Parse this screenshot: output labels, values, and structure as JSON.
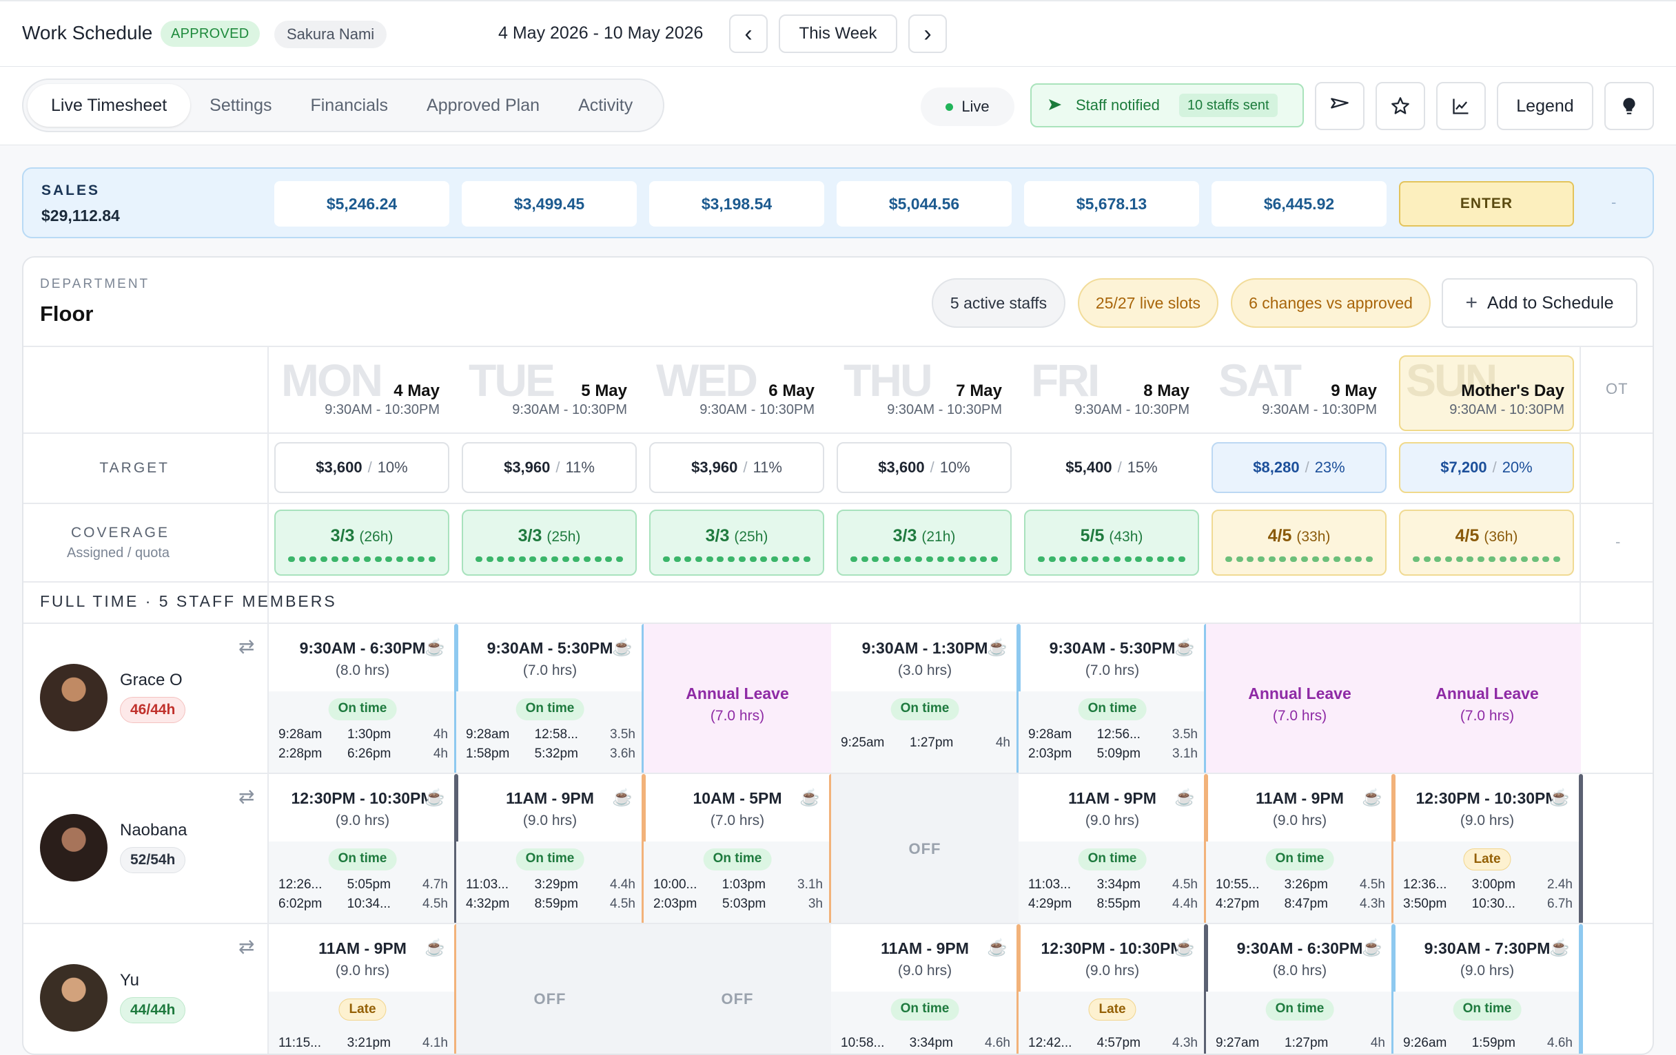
{
  "header": {
    "title": "Work Schedule",
    "status": "APPROVED",
    "user": "Sakura Nami",
    "date_range": "4 May 2026 - 10 May 2026",
    "prev_icon": "‹",
    "this_week": "This Week",
    "next_icon": "›"
  },
  "tabs": [
    "Live Timesheet",
    "Settings",
    "Financials",
    "Approved Plan",
    "Activity"
  ],
  "toolbar": {
    "live": "Live",
    "notified": "Staff notified",
    "sent": "10 staffs sent",
    "legend": "Legend",
    "send_icon": "send-icon",
    "star_icon": "star-icon",
    "chart_icon": "chart-icon",
    "bulb_icon": "bulb-icon"
  },
  "sales": {
    "label": "SALES",
    "total": "$29,112.84",
    "days": [
      "$5,246.24",
      "$3,499.45",
      "$3,198.54",
      "$5,044.56",
      "$5,678.13",
      "$6,445.92"
    ],
    "enter": "ENTER",
    "ot": "-"
  },
  "department": {
    "label": "DEPARTMENT",
    "name": "Floor",
    "active_staffs": "5 active staffs",
    "live_slots": "25/27 live slots",
    "changes": "6 changes vs approved",
    "add_button": "Add to Schedule"
  },
  "days": [
    {
      "word": "MON",
      "date": "4 May",
      "hours": "9:30AM - 10:30PM"
    },
    {
      "word": "TUE",
      "date": "5 May",
      "hours": "9:30AM - 10:30PM"
    },
    {
      "word": "WED",
      "date": "6 May",
      "hours": "9:30AM - 10:30PM"
    },
    {
      "word": "THU",
      "date": "7 May",
      "hours": "9:30AM - 10:30PM"
    },
    {
      "word": "FRI",
      "date": "8 May",
      "hours": "9:30AM - 10:30PM"
    },
    {
      "word": "SAT",
      "date": "9 May",
      "hours": "9:30AM - 10:30PM"
    },
    {
      "word": "SUN",
      "date": "Mother's Day",
      "hours": "9:30AM - 10:30PM"
    }
  ],
  "ot_label": "OT",
  "target": {
    "label": "TARGET",
    "cells": [
      {
        "amount": "$3,600",
        "pct": "10%"
      },
      {
        "amount": "$3,960",
        "pct": "11%"
      },
      {
        "amount": "$3,960",
        "pct": "11%"
      },
      {
        "amount": "$3,600",
        "pct": "10%"
      },
      {
        "amount": "$5,400",
        "pct": "15%"
      },
      {
        "amount": "$8,280",
        "pct": "23%"
      },
      {
        "amount": "$7,200",
        "pct": "20%"
      }
    ]
  },
  "coverage": {
    "label": "COVERAGE",
    "sub": "Assigned / quota",
    "cells": [
      {
        "count": "3/3",
        "hours": "(26h)"
      },
      {
        "count": "3/3",
        "hours": "(25h)"
      },
      {
        "count": "3/3",
        "hours": "(25h)"
      },
      {
        "count": "3/3",
        "hours": "(21h)"
      },
      {
        "count": "5/5",
        "hours": "(43h)"
      },
      {
        "count": "4/5",
        "hours": "(33h)"
      },
      {
        "count": "4/5",
        "hours": "(36h)"
      }
    ],
    "ot": "-"
  },
  "section_title": "FULL TIME · 5 STAFF MEMBERS",
  "staff": [
    {
      "name": "Grace O",
      "hours": "46/44h",
      "days": [
        {
          "type": "shift",
          "time": "9:30AM - 6:30PM",
          "hrs": "(8.0 hrs)",
          "status": "On time",
          "punches": [
            [
              "9:28am",
              "1:30pm",
              "4h"
            ],
            [
              "2:28pm",
              "6:26pm",
              "4h"
            ]
          ]
        },
        {
          "type": "shift",
          "time": "9:30AM - 5:30PM",
          "hrs": "(7.0 hrs)",
          "status": "On time",
          "punches": [
            [
              "9:28am",
              "12:58...",
              "3.5h"
            ],
            [
              "1:58pm",
              "5:32pm",
              "3.6h"
            ]
          ]
        },
        {
          "type": "leave",
          "label": "Annual Leave",
          "hrs": "(7.0 hrs)"
        },
        {
          "type": "shift",
          "time": "9:30AM - 1:30PM",
          "hrs": "(3.0 hrs)",
          "status": "On time",
          "punches": [
            [
              "9:25am",
              "1:27pm",
              "4h"
            ]
          ]
        },
        {
          "type": "shift",
          "time": "9:30AM - 5:30PM",
          "hrs": "(7.0 hrs)",
          "status": "On time",
          "punches": [
            [
              "9:28am",
              "12:56...",
              "3.5h"
            ],
            [
              "2:03pm",
              "5:09pm",
              "3.1h"
            ]
          ]
        },
        {
          "type": "leave",
          "label": "Annual Leave",
          "hrs": "(7.0 hrs)"
        },
        {
          "type": "leave",
          "label": "Annual Leave",
          "hrs": "(7.0 hrs)"
        }
      ]
    },
    {
      "name": "Naobana",
      "hours": "52/54h",
      "days": [
        {
          "type": "shift",
          "time": "12:30PM - 10:30PM",
          "hrs": "(9.0 hrs)",
          "status": "On time",
          "punches": [
            [
              "12:26...",
              "5:05pm",
              "4.7h"
            ],
            [
              "6:02pm",
              "10:34...",
              "4.5h"
            ]
          ]
        },
        {
          "type": "shift",
          "time": "11AM - 9PM",
          "hrs": "(9.0 hrs)",
          "status": "On time",
          "punches": [
            [
              "11:03...",
              "3:29pm",
              "4.4h"
            ],
            [
              "4:32pm",
              "8:59pm",
              "4.5h"
            ]
          ]
        },
        {
          "type": "shift",
          "time": "10AM - 5PM",
          "hrs": "(7.0 hrs)",
          "status": "On time",
          "punches": [
            [
              "10:00...",
              "1:03pm",
              "3.1h"
            ],
            [
              "2:03pm",
              "5:03pm",
              "3h"
            ]
          ]
        },
        {
          "type": "off",
          "label": "OFF"
        },
        {
          "type": "shift",
          "time": "11AM - 9PM",
          "hrs": "(9.0 hrs)",
          "status": "On time",
          "punches": [
            [
              "11:03...",
              "3:34pm",
              "4.5h"
            ],
            [
              "4:29pm",
              "8:55pm",
              "4.4h"
            ]
          ]
        },
        {
          "type": "shift",
          "time": "11AM - 9PM",
          "hrs": "(9.0 hrs)",
          "status": "On time",
          "punches": [
            [
              "10:55...",
              "3:26pm",
              "4.5h"
            ],
            [
              "4:27pm",
              "8:47pm",
              "4.3h"
            ]
          ]
        },
        {
          "type": "shift",
          "time": "12:30PM - 10:30PM",
          "hrs": "(9.0 hrs)",
          "status": "Late",
          "punches": [
            [
              "12:36...",
              "3:00pm",
              "2.4h"
            ],
            [
              "3:50pm",
              "10:30...",
              "6.7h"
            ]
          ]
        }
      ]
    },
    {
      "name": "Yu",
      "hours": "44/44h",
      "days": [
        {
          "type": "shift",
          "time": "11AM - 9PM",
          "hrs": "(9.0 hrs)",
          "status": "Late",
          "punches": [
            [
              "11:15...",
              "3:21pm",
              "4.1h"
            ]
          ]
        },
        {
          "type": "off",
          "label": "OFF"
        },
        {
          "type": "off",
          "label": "OFF"
        },
        {
          "type": "shift",
          "time": "11AM - 9PM",
          "hrs": "(9.0 hrs)",
          "status": "On time",
          "punches": [
            [
              "10:58...",
              "3:34pm",
              "4.6h"
            ]
          ]
        },
        {
          "type": "shift",
          "time": "12:30PM - 10:30PM",
          "hrs": "(9.0 hrs)",
          "status": "Late",
          "punches": [
            [
              "12:42...",
              "4:57pm",
              "4.3h"
            ]
          ]
        },
        {
          "type": "shift",
          "time": "9:30AM - 6:30PM",
          "hrs": "(8.0 hrs)",
          "status": "On time",
          "punches": [
            [
              "9:27am",
              "1:27pm",
              "4h"
            ]
          ]
        },
        {
          "type": "shift",
          "time": "9:30AM - 7:30PM",
          "hrs": "(9.0 hrs)",
          "status": "On time",
          "punches": [
            [
              "9:26am",
              "1:59pm",
              "4.6h"
            ]
          ]
        }
      ]
    }
  ],
  "colors": {
    "accent_green": "#1e8a3c",
    "bar_blue": "#8ec9f0",
    "bar_orange": "#f2b27a",
    "bar_slate": "#5b6172",
    "leave_purple": "#8e2aa5"
  }
}
